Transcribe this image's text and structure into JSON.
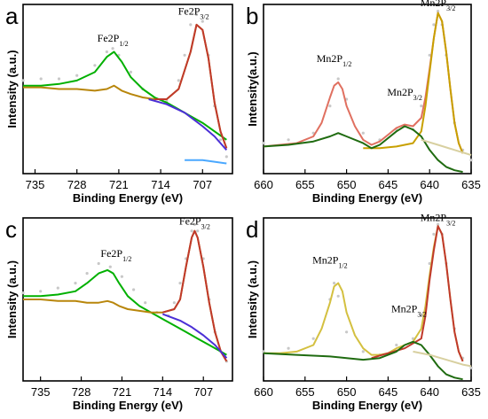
{
  "chart_data": [
    {
      "panel_label": "a",
      "type": "line",
      "xlabel": "Binding Energy (eV)",
      "ylabel": "Intensity (a.u.)",
      "xlim": [
        737,
        702
      ],
      "xticks": [
        "735",
        "728",
        "721",
        "714",
        "707"
      ],
      "tick_values": [
        735,
        728,
        721,
        714,
        707
      ],
      "ylim": [
        0,
        100
      ],
      "grid": false,
      "annotations": [
        {
          "base": "Fe2P",
          "sub": "1/2",
          "sup": "",
          "x": 722.0,
          "y": 78
        },
        {
          "base": "Fe2P",
          "sub": "3/2",
          "sup": "",
          "x": 708.5,
          "y": 94
        }
      ],
      "series": [
        {
          "color": "#c8c8c8",
          "style": "dots",
          "x": [
            737,
            734,
            731,
            728,
            725,
            723,
            722,
            721,
            719,
            717,
            715,
            713,
            711,
            710,
            709,
            708,
            707,
            706,
            705,
            704,
            703
          ],
          "y": [
            55,
            56,
            56,
            58,
            64,
            72,
            74,
            70,
            60,
            50,
            44,
            43,
            55,
            70,
            88,
            94,
            90,
            70,
            40,
            20,
            10
          ]
        },
        {
          "color": "#00b000",
          "style": "line",
          "x": [
            737,
            734,
            731,
            728,
            725,
            723,
            721.8,
            720.5,
            719,
            717,
            715,
            713,
            711,
            709,
            707,
            705,
            703
          ],
          "y": [
            52,
            52,
            53,
            55,
            60,
            69,
            72,
            66,
            57,
            50,
            45,
            42,
            38,
            34,
            30,
            25,
            20
          ]
        },
        {
          "color": "#b8860b",
          "style": "line",
          "x": [
            737,
            734,
            731,
            728,
            725,
            723,
            721.8,
            720.5,
            719,
            717,
            715,
            713,
            711,
            709,
            708,
            707,
            706,
            705,
            704,
            703
          ],
          "y": [
            51,
            51,
            50,
            50,
            49,
            50,
            52,
            49,
            47,
            45,
            44,
            44,
            50,
            72,
            88,
            85,
            68,
            42,
            25,
            15
          ]
        },
        {
          "color": "#c0392b",
          "style": "line",
          "x": [
            715,
            713,
            711,
            709,
            708,
            707,
            706,
            705,
            704,
            703
          ],
          "y": [
            44,
            44,
            50,
            72,
            88,
            85,
            68,
            42,
            25,
            15
          ]
        },
        {
          "color": "#4b2fd6",
          "style": "line",
          "x": [
            716,
            713,
            710,
            707,
            705,
            703
          ],
          "y": [
            44,
            41,
            36,
            28,
            22,
            14
          ]
        },
        {
          "color": "#4aa8ff",
          "style": "line",
          "x": [
            710,
            707,
            705,
            703
          ],
          "y": [
            8,
            8,
            7,
            6
          ]
        }
      ]
    },
    {
      "panel_label": "b",
      "type": "line",
      "xlabel": "Binding Energy (eV)",
      "ylabel": "Intensity(a.u.)",
      "xlim": [
        660,
        635
      ],
      "xticks": [
        "660",
        "655",
        "650",
        "645",
        "640",
        "635"
      ],
      "tick_values": [
        660,
        655,
        650,
        645,
        640,
        635
      ],
      "ylim": [
        0,
        100
      ],
      "grid": false,
      "annotations": [
        {
          "base": "Mn2P",
          "sub": "1/2",
          "sup": "",
          "x": 651.5,
          "y": 66
        },
        {
          "base": "Mn2P",
          "sub": "3/2",
          "sup": "",
          "x": 643.0,
          "y": 46
        },
        {
          "base": "Mn2P",
          "sub": "3/2",
          "sup": "",
          "x": 639.0,
          "y": 99
        }
      ],
      "series": [
        {
          "color": "#c8c8c8",
          "style": "dots",
          "x": [
            660,
            657,
            654,
            652,
            651,
            650,
            648,
            646,
            644,
            643,
            642,
            641,
            640,
            639.5,
            639,
            638.5,
            638,
            637,
            636,
            635
          ],
          "y": [
            18,
            20,
            24,
            40,
            56,
            44,
            24,
            20,
            26,
            28,
            26,
            40,
            70,
            88,
            96,
            88,
            70,
            30,
            14,
            8
          ]
        },
        {
          "color": "#e07060",
          "style": "line",
          "x": [
            660,
            658,
            656,
            654,
            653,
            652,
            651.5,
            651,
            650.5,
            650,
            649,
            648,
            647,
            646,
            645,
            644,
            643,
            642,
            641,
            640.5,
            640,
            639.5,
            639,
            638.5,
            638,
            637.5,
            637,
            636.5,
            636
          ],
          "y": [
            16,
            17,
            18,
            22,
            30,
            45,
            52,
            54,
            50,
            40,
            28,
            20,
            17,
            19,
            23,
            27,
            29,
            28,
            33,
            45,
            62,
            80,
            95,
            90,
            72,
            50,
            30,
            18,
            12
          ]
        },
        {
          "color": "#c8a000",
          "style": "line",
          "x": [
            648,
            646,
            644,
            642,
            641,
            640.5,
            640,
            639.5,
            639,
            638.5,
            638,
            637.5,
            637,
            636.5,
            636
          ],
          "y": [
            15,
            15,
            16,
            18,
            25,
            40,
            60,
            80,
            95,
            90,
            72,
            50,
            30,
            18,
            12
          ]
        },
        {
          "color": "#1f6b10",
          "style": "line",
          "x": [
            660,
            657,
            654,
            652,
            651,
            650,
            648,
            647,
            646,
            644,
            643,
            642,
            641,
            640,
            639,
            638,
            637,
            636
          ],
          "y": [
            16,
            17,
            19,
            22,
            24,
            22,
            18,
            15,
            17,
            25,
            28,
            26,
            22,
            14,
            8,
            4,
            2,
            1
          ]
        },
        {
          "color": "#d8d0a0",
          "style": "line",
          "x": [
            641,
            639,
            637,
            635
          ],
          "y": [
            20,
            17,
            14,
            11
          ]
        }
      ]
    },
    {
      "panel_label": "c",
      "type": "line",
      "xlabel": "Binding Energy (eV)",
      "ylabel": "Intensity (a.u.)",
      "xlim": [
        738,
        702
      ],
      "xticks": [
        "735",
        "728",
        "721",
        "714",
        "707"
      ],
      "tick_values": [
        735,
        728,
        721,
        714,
        707
      ],
      "ylim": [
        0,
        100
      ],
      "grid": false,
      "annotations": [
        {
          "base": "Fe2P",
          "sub": "1/2",
          "sup": "",
          "x": 722.0,
          "y": 76
        },
        {
          "base": "Fe2P",
          "sub": "3/2",
          "sup": "",
          "x": 708.5,
          "y": 96
        }
      ],
      "series": [
        {
          "color": "#c8c8c8",
          "style": "dots",
          "x": [
            738,
            735,
            732,
            729,
            727,
            725,
            723,
            721,
            719,
            717,
            715,
            713,
            712,
            711,
            710,
            709,
            708.5,
            708,
            707,
            706,
            705,
            704,
            703
          ],
          "y": [
            54,
            55,
            57,
            60,
            66,
            72,
            70,
            64,
            56,
            48,
            42,
            40,
            48,
            60,
            75,
            92,
            96,
            92,
            75,
            50,
            30,
            18,
            12
          ]
        },
        {
          "color": "#00b000",
          "style": "line",
          "x": [
            738,
            735,
            732,
            729,
            727,
            725,
            723.5,
            722.5,
            721.5,
            720,
            718,
            716,
            714,
            712,
            710,
            708,
            706,
            704,
            703
          ],
          "y": [
            52,
            52,
            53,
            55,
            60,
            66,
            68,
            66,
            60,
            52,
            46,
            42,
            38,
            34,
            30,
            26,
            22,
            18,
            16
          ]
        },
        {
          "color": "#b8860b",
          "style": "line",
          "x": [
            738,
            735,
            732,
            729,
            727,
            725,
            723.5,
            722.5,
            721.5,
            720,
            718,
            716,
            714,
            712,
            711,
            710,
            709,
            708.5,
            708,
            707,
            706,
            705,
            704,
            703
          ],
          "y": [
            50,
            50,
            49,
            49,
            48,
            48,
            49,
            48,
            46,
            44,
            43,
            42,
            42,
            44,
            50,
            70,
            88,
            92,
            88,
            70,
            48,
            30,
            18,
            12
          ]
        },
        {
          "color": "#c0392b",
          "style": "line",
          "x": [
            714,
            712,
            711,
            710,
            709,
            708.5,
            708,
            707,
            706,
            705,
            704,
            703
          ],
          "y": [
            42,
            44,
            50,
            70,
            88,
            92,
            88,
            70,
            48,
            30,
            18,
            12
          ]
        },
        {
          "color": "#4b2fd6",
          "style": "line",
          "x": [
            714,
            711,
            709,
            707,
            705,
            703
          ],
          "y": [
            41,
            37,
            33,
            28,
            22,
            14
          ]
        }
      ]
    },
    {
      "panel_label": "d",
      "type": "line",
      "xlabel": "Binding Energy (eV)",
      "ylabel": "Intensity (a.u.)",
      "xlim": [
        660,
        635
      ],
      "xticks": [
        "660",
        "655",
        "650",
        "645",
        "640",
        "635"
      ],
      "tick_values": [
        660,
        655,
        650,
        645,
        640,
        635
      ],
      "ylim": [
        0,
        100
      ],
      "grid": false,
      "annotations": [
        {
          "base": "Mn2P",
          "sub": "1/2",
          "sup": "",
          "x": 652.0,
          "y": 72
        },
        {
          "base": "Mn2P",
          "sub": "3/2",
          "sup": "",
          "x": 642.5,
          "y": 42
        },
        {
          "base": "Mn2P",
          "sub": "3/2",
          "sup": "",
          "x": 639.0,
          "y": 98
        }
      ],
      "series": [
        {
          "color": "#c8c8c8",
          "style": "dots",
          "x": [
            660,
            657,
            654,
            652,
            651.5,
            651,
            650,
            648,
            646,
            644,
            642,
            641,
            640,
            639.5,
            639,
            638.5,
            638,
            637,
            636,
            635
          ],
          "y": [
            18,
            20,
            26,
            50,
            60,
            52,
            30,
            18,
            16,
            22,
            26,
            40,
            72,
            90,
            96,
            90,
            72,
            32,
            14,
            8
          ]
        },
        {
          "color": "#d4c040",
          "style": "line",
          "x": [
            660,
            658,
            656,
            654,
            653,
            652,
            651.5,
            651,
            650.5,
            650,
            649,
            648,
            647,
            646,
            645,
            644,
            643,
            642,
            641,
            640.5,
            640,
            639.5,
            639,
            638.5,
            638,
            637.5,
            637,
            636.5,
            636
          ],
          "y": [
            17,
            17,
            18,
            22,
            32,
            48,
            58,
            60,
            55,
            42,
            28,
            20,
            16,
            16,
            17,
            20,
            22,
            24,
            32,
            46,
            65,
            82,
            95,
            90,
            72,
            50,
            30,
            18,
            12
          ]
        },
        {
          "color": "#c0392b",
          "style": "line",
          "x": [
            647,
            645,
            643,
            641,
            640.5,
            640,
            639.5,
            639,
            638.5,
            638,
            637.5,
            637,
            636.5,
            636
          ],
          "y": [
            14,
            17,
            20,
            26,
            40,
            62,
            80,
            95,
            90,
            72,
            50,
            30,
            18,
            12
          ]
        },
        {
          "color": "#1f6b10",
          "style": "line",
          "x": [
            660,
            656,
            652,
            650,
            648,
            646,
            644,
            643,
            642,
            641,
            640,
            639,
            638,
            637,
            636
          ],
          "y": [
            17,
            16,
            15,
            14,
            13,
            14,
            18,
            22,
            24,
            22,
            16,
            9,
            4,
            2,
            1
          ]
        },
        {
          "color": "#d8d0a0",
          "style": "line",
          "x": [
            642,
            640,
            638,
            636,
            635
          ],
          "y": [
            18,
            16,
            13,
            10,
            9
          ]
        }
      ]
    }
  ]
}
